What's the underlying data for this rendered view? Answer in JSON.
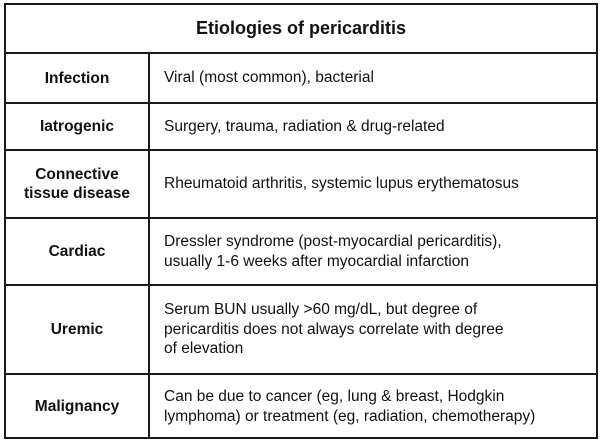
{
  "table": {
    "title": "Etiologies of pericarditis",
    "rows": [
      {
        "label": "Infection",
        "description": "Viral (most common), bacterial"
      },
      {
        "label": "Iatrogenic",
        "description": "Surgery, trauma, radiation & drug-related"
      },
      {
        "label": "Connective\ntissue disease",
        "description": "Rheumatoid arthritis, systemic lupus erythematosus"
      },
      {
        "label": "Cardiac",
        "description": "Dressler syndrome (post-myocardial pericarditis),\nusually 1-6 weeks after myocardial infarction"
      },
      {
        "label": "Uremic",
        "description": "Serum BUN usually >60 mg/dL, but degree of\npericarditis does not always correlate with degree\nof elevation"
      },
      {
        "label": "Malignancy",
        "description": "Can be due to cancer (eg, lung & breast, Hodgkin\nlymphoma) or treatment (eg, radiation, chemotherapy)"
      }
    ]
  }
}
